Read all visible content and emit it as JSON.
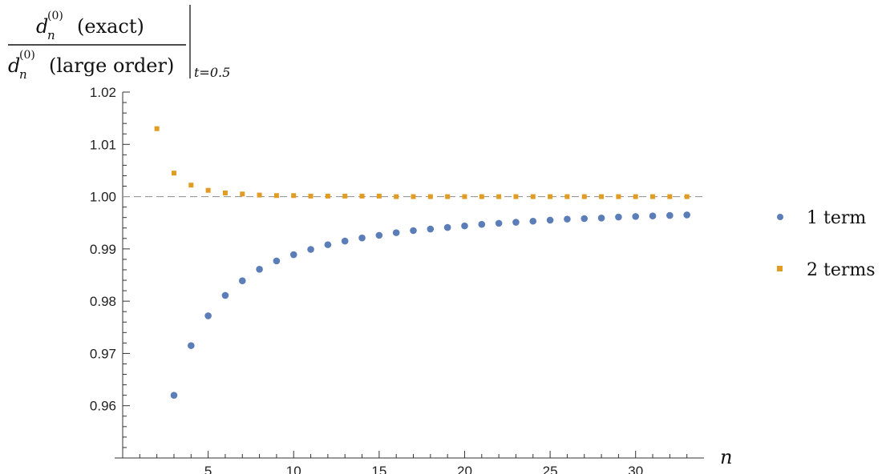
{
  "chart_data": {
    "type": "scatter",
    "ylabel": {
      "numerator_main": "d",
      "numerator_sub": "n",
      "numerator_sup": "(0)",
      "numerator_text": "(exact)",
      "denominator_main": "d",
      "denominator_sub": "n",
      "denominator_sup": "(0)",
      "denominator_text": "(large order)",
      "evaluation": "t=0.5"
    },
    "xlabel": "n",
    "xlim": [
      0,
      34
    ],
    "ylim": [
      0.95,
      1.02
    ],
    "x_ticks": [
      5,
      10,
      15,
      20,
      25,
      30
    ],
    "y_ticks": [
      "0.96",
      "0.97",
      "0.98",
      "0.99",
      "1.00",
      "1.01",
      "1.02"
    ],
    "reference_line": {
      "y": 1.0,
      "style": "dashed"
    },
    "series": [
      {
        "name": "1 term",
        "marker": "circle",
        "color": "#5b7db8",
        "x": [
          3,
          4,
          5,
          6,
          7,
          8,
          9,
          10,
          11,
          12,
          13,
          14,
          15,
          16,
          17,
          18,
          19,
          20,
          21,
          22,
          23,
          24,
          25,
          26,
          27,
          28,
          29,
          30,
          31,
          32,
          33
        ],
        "y": [
          0.962,
          0.9715,
          0.9772,
          0.9811,
          0.9839,
          0.9861,
          0.9877,
          0.9889,
          0.9899,
          0.9908,
          0.9915,
          0.9921,
          0.9926,
          0.9931,
          0.9935,
          0.9938,
          0.9941,
          0.9944,
          0.9947,
          0.9949,
          0.9951,
          0.9953,
          0.9955,
          0.9957,
          0.9958,
          0.9959,
          0.9961,
          0.9962,
          0.9963,
          0.9964,
          0.9965
        ]
      },
      {
        "name": "2 terms",
        "marker": "square",
        "color": "#e19c24",
        "x": [
          2,
          3,
          4,
          5,
          6,
          7,
          8,
          9,
          10,
          11,
          12,
          13,
          14,
          15,
          16,
          17,
          18,
          19,
          20,
          21,
          22,
          23,
          24,
          25,
          26,
          27,
          28,
          29,
          30,
          31,
          32,
          33
        ],
        "y": [
          1.013,
          1.0045,
          1.0022,
          1.0012,
          1.0007,
          1.0005,
          1.0003,
          1.0002,
          1.0002,
          1.0001,
          1.0001,
          1.0001,
          1.0001,
          1.0001,
          1.0,
          1.0,
          1.0,
          1.0,
          1.0,
          1.0,
          1.0,
          1.0,
          1.0,
          1.0,
          1.0,
          1.0,
          1.0,
          1.0,
          1.0,
          1.0,
          1.0,
          1.0
        ]
      }
    ]
  }
}
